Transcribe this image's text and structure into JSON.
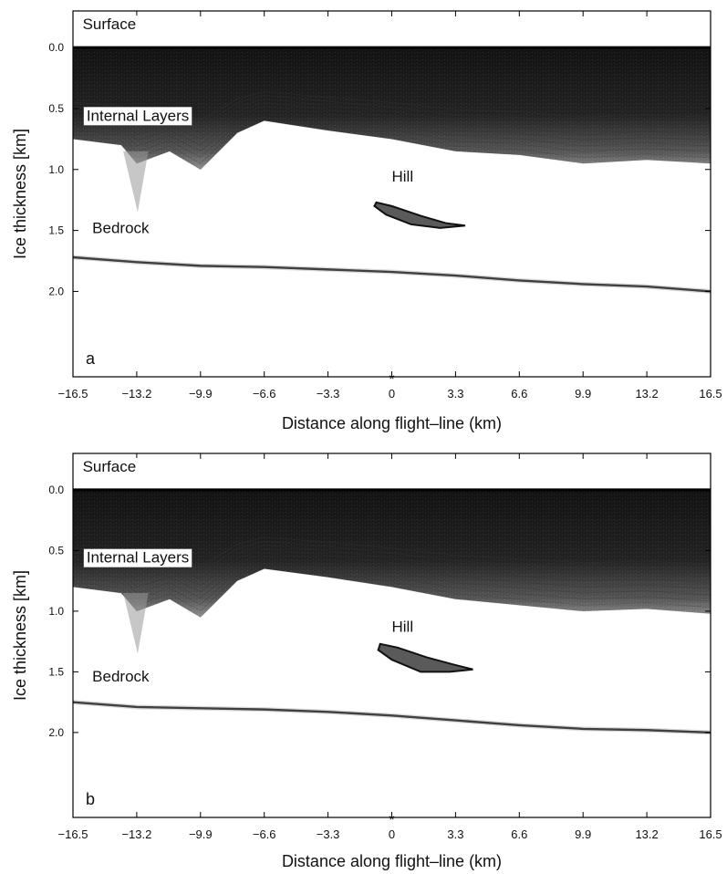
{
  "chart_data": [
    {
      "type": "radargram",
      "panel_label": "a",
      "xlabel": "Distance along flight–line (km)",
      "ylabel": "Ice thickness [km]",
      "xlim": [
        -16.5,
        16.5
      ],
      "ylim": [
        2.7,
        -0.3
      ],
      "xticks": [
        -16.5,
        -13.2,
        -9.9,
        -6.6,
        -3.3,
        0,
        3.3,
        6.6,
        9.9,
        13.2,
        16.5
      ],
      "xtick_labels": [
        "−16.5",
        "−13.2",
        "−9.9",
        "−6.6",
        "−3.3",
        "0",
        "3.3",
        "6.6",
        "9.9",
        "13.2",
        "16.5"
      ],
      "yticks": [
        0.0,
        0.5,
        1.0,
        1.5,
        2.0
      ],
      "ytick_labels": [
        "0.0",
        "0.5",
        "1.0",
        "1.5",
        "2.0"
      ],
      "marker": {
        "x": 0,
        "label": "*"
      },
      "annotations": [
        {
          "text": "Surface",
          "x": -16.0,
          "y": -0.15
        },
        {
          "text": "Internal Layers",
          "x": -15.8,
          "y": 0.6
        },
        {
          "text": "Hill",
          "x": 0.0,
          "y": 1.1
        },
        {
          "text": "Bedrock",
          "x": -15.5,
          "y": 1.52
        }
      ],
      "surface_depth": 0.0,
      "internal_layers_base": [
        [
          -16.5,
          0.75
        ],
        [
          -14.0,
          0.8
        ],
        [
          -13.2,
          0.95
        ],
        [
          -11.5,
          0.85
        ],
        [
          -9.9,
          1.0
        ],
        [
          -8.0,
          0.7
        ],
        [
          -6.6,
          0.6
        ],
        [
          -3.3,
          0.68
        ],
        [
          0,
          0.75
        ],
        [
          3.3,
          0.85
        ],
        [
          6.6,
          0.88
        ],
        [
          9.9,
          0.95
        ],
        [
          13.2,
          0.92
        ],
        [
          16.5,
          0.95
        ]
      ],
      "bedrock": [
        [
          -16.5,
          1.72
        ],
        [
          -13.2,
          1.76
        ],
        [
          -9.9,
          1.79
        ],
        [
          -6.6,
          1.8
        ],
        [
          -3.3,
          1.82
        ],
        [
          0,
          1.84
        ],
        [
          3.3,
          1.87
        ],
        [
          6.6,
          1.91
        ],
        [
          9.9,
          1.94
        ],
        [
          13.2,
          1.96
        ],
        [
          16.5,
          2.0
        ]
      ],
      "hill": [
        [
          -0.8,
          1.27
        ],
        [
          0.0,
          1.3
        ],
        [
          1.5,
          1.38
        ],
        [
          2.8,
          1.44
        ],
        [
          3.8,
          1.46
        ],
        [
          2.5,
          1.48
        ],
        [
          1.0,
          1.45
        ],
        [
          -0.3,
          1.37
        ],
        [
          -0.9,
          1.3
        ]
      ]
    },
    {
      "type": "radargram",
      "panel_label": "b",
      "xlabel": "Distance along flight–line (km)",
      "ylabel": "Ice thickness [km]",
      "xlim": [
        -16.5,
        16.5
      ],
      "ylim": [
        2.7,
        -0.3
      ],
      "xticks": [
        -16.5,
        -13.2,
        -9.9,
        -6.6,
        -3.3,
        0,
        3.3,
        6.6,
        9.9,
        13.2,
        16.5
      ],
      "xtick_labels": [
        "−16.5",
        "−13.2",
        "−9.9",
        "−6.6",
        "−3.3",
        "0",
        "3.3",
        "6.6",
        "9.9",
        "13.2",
        "16.5"
      ],
      "yticks": [
        0.0,
        0.5,
        1.0,
        1.5,
        2.0
      ],
      "ytick_labels": [
        "0.0",
        "0.5",
        "1.0",
        "1.5",
        "2.0"
      ],
      "marker": {
        "x": 0,
        "label": "*"
      },
      "annotations": [
        {
          "text": "Surface",
          "x": -16.0,
          "y": -0.15
        },
        {
          "text": "Internal Layers",
          "x": -15.8,
          "y": 0.6
        },
        {
          "text": "Hill",
          "x": 0.0,
          "y": 1.17
        },
        {
          "text": "Bedrock",
          "x": -15.5,
          "y": 1.58
        }
      ],
      "surface_depth": 0.0,
      "internal_layers_base": [
        [
          -16.5,
          0.8
        ],
        [
          -14.0,
          0.85
        ],
        [
          -13.2,
          1.0
        ],
        [
          -11.5,
          0.9
        ],
        [
          -9.9,
          1.05
        ],
        [
          -8.0,
          0.75
        ],
        [
          -6.6,
          0.65
        ],
        [
          -3.3,
          0.72
        ],
        [
          0,
          0.8
        ],
        [
          3.3,
          0.9
        ],
        [
          6.6,
          0.95
        ],
        [
          9.9,
          1.0
        ],
        [
          13.2,
          0.98
        ],
        [
          16.5,
          1.02
        ]
      ],
      "bedrock": [
        [
          -16.5,
          1.75
        ],
        [
          -13.2,
          1.79
        ],
        [
          -9.9,
          1.8
        ],
        [
          -6.6,
          1.81
        ],
        [
          -3.3,
          1.83
        ],
        [
          0,
          1.86
        ],
        [
          3.3,
          1.9
        ],
        [
          6.6,
          1.94
        ],
        [
          9.9,
          1.97
        ],
        [
          13.2,
          1.98
        ],
        [
          16.5,
          2.0
        ]
      ],
      "hill": [
        [
          -0.6,
          1.27
        ],
        [
          0.3,
          1.3
        ],
        [
          1.8,
          1.38
        ],
        [
          3.2,
          1.44
        ],
        [
          4.2,
          1.48
        ],
        [
          3.0,
          1.5
        ],
        [
          1.5,
          1.5
        ],
        [
          0.0,
          1.4
        ],
        [
          -0.7,
          1.32
        ]
      ]
    }
  ]
}
